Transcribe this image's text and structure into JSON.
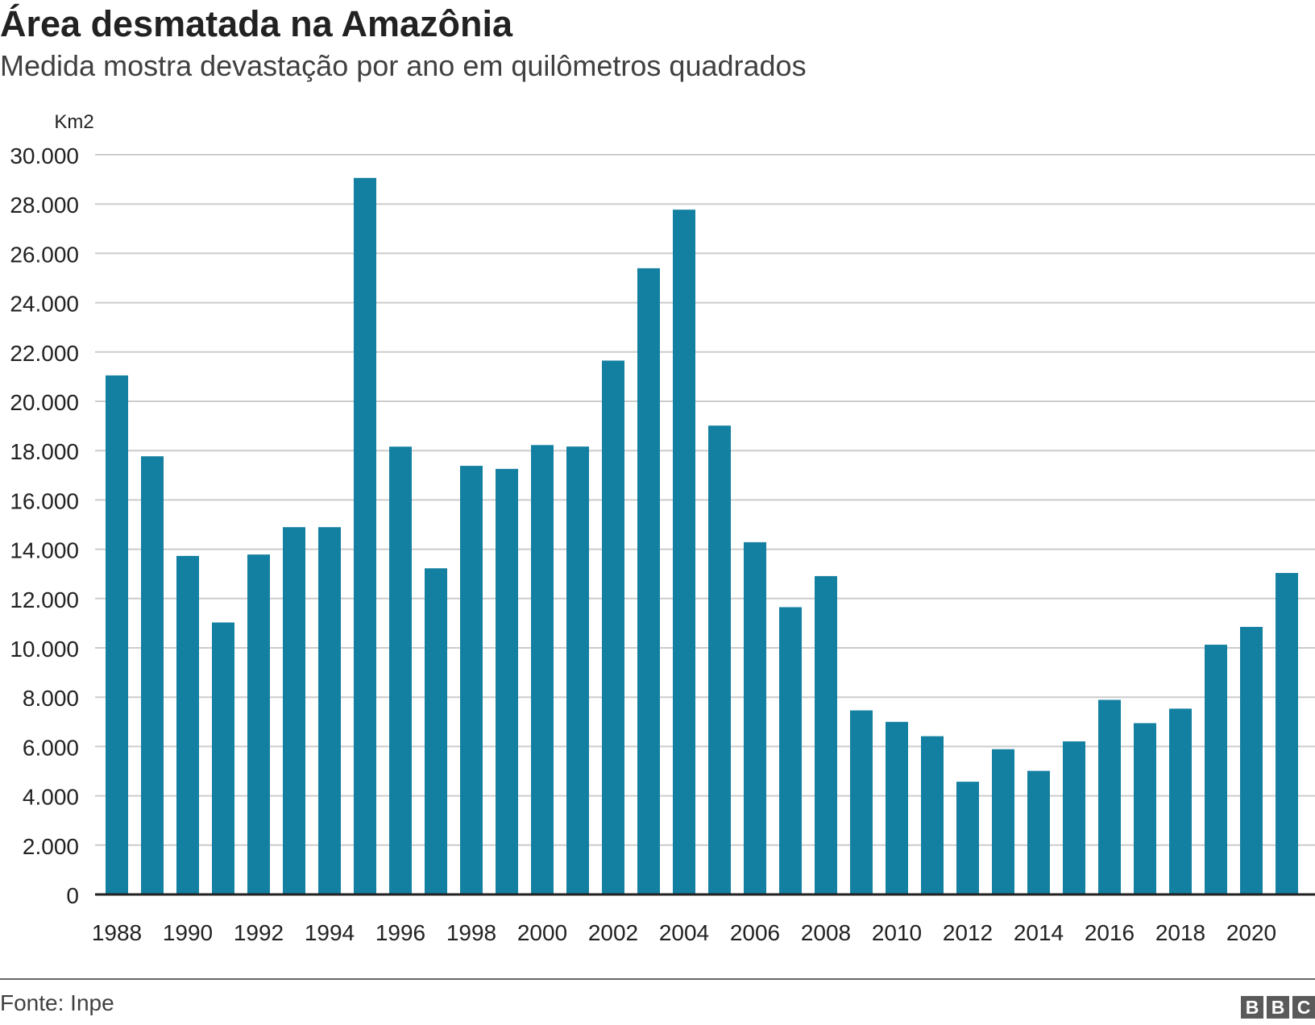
{
  "title": "Área desmatada na Amazônia",
  "subtitle": "Medida mostra devastação por ano em quilômetros quadrados",
  "source": "Fonte: Inpe",
  "logo": [
    "B",
    "B",
    "C"
  ],
  "colors": {
    "bar": "#1380a1",
    "grid": "#cccccc",
    "axis": "#222222",
    "text": "#222222"
  },
  "chart_data": {
    "type": "bar",
    "ylabel": "Km2",
    "ylim": [
      0,
      30000
    ],
    "grid": true,
    "y_ticks": [
      0,
      2000,
      4000,
      6000,
      8000,
      10000,
      12000,
      14000,
      16000,
      18000,
      20000,
      22000,
      24000,
      26000,
      28000,
      30000
    ],
    "y_tick_labels": [
      "0",
      "2.000",
      "4.000",
      "6.000",
      "8.000",
      "10.000",
      "12.000",
      "14.000",
      "16.000",
      "18.000",
      "20.000",
      "22.000",
      "24.000",
      "26.000",
      "28.000",
      "30.000"
    ],
    "x_tick_labels": [
      "1988",
      "1990",
      "1992",
      "1994",
      "1996",
      "1998",
      "2000",
      "2002",
      "2004",
      "2006",
      "2008",
      "2010",
      "2012",
      "2014",
      "2016",
      "2018",
      "2020"
    ],
    "categories": [
      1988,
      1989,
      1990,
      1991,
      1992,
      1993,
      1994,
      1995,
      1996,
      1997,
      1998,
      1999,
      2000,
      2001,
      2002,
      2003,
      2004,
      2005,
      2006,
      2007,
      2008,
      2009,
      2010,
      2011,
      2012,
      2013,
      2014,
      2015,
      2016,
      2017,
      2018,
      2019,
      2020,
      2021
    ],
    "values": [
      21050,
      17770,
      13730,
      11030,
      13786,
      14896,
      14896,
      29059,
      18161,
      13227,
      17383,
      17259,
      18226,
      18165,
      21651,
      25396,
      27772,
      19014,
      14286,
      11651,
      12911,
      7464,
      7000,
      6418,
      4571,
      5891,
      5012,
      6207,
      7893,
      6947,
      7536,
      10129,
      10851,
      13038
    ]
  }
}
